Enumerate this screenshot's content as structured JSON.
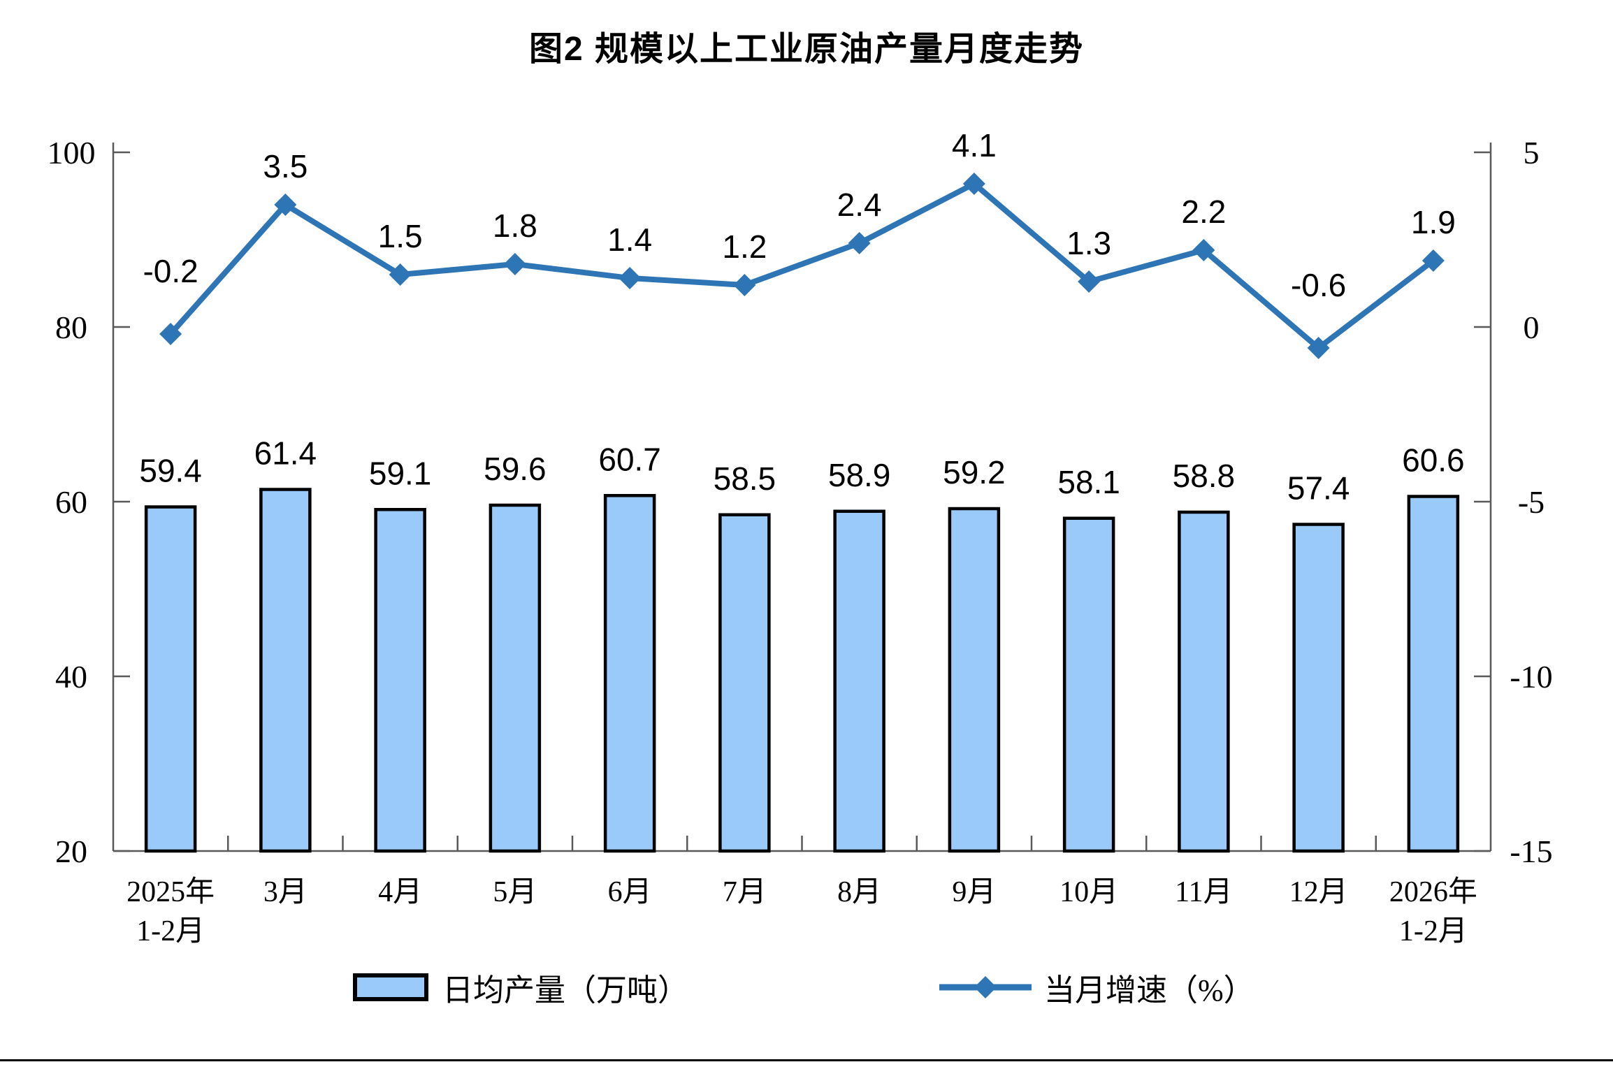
{
  "page": {
    "title": "图2 规模以上工业原油产量月度走势"
  },
  "legend": {
    "bar_label": "日均产量（万吨）",
    "line_label": "当月增速（%）"
  },
  "colors": {
    "bar_fill": "#9ACAFA",
    "bar_border": "#000000",
    "line": "#2E75B6",
    "axis": "#595959",
    "label_text": "#000000"
  },
  "chart_data": {
    "type": "combo",
    "title": "图2 规模以上工业原油产量月度走势",
    "categories": [
      "2025年\n1-2月",
      "3月",
      "4月",
      "5月",
      "6月",
      "7月",
      "8月",
      "9月",
      "10月",
      "11月",
      "12月",
      "2026年\n1-2月"
    ],
    "series": [
      {
        "name": "日均产量（万吨）",
        "type": "bar",
        "axis": "left",
        "values": [
          59.4,
          61.4,
          59.1,
          59.6,
          60.7,
          58.5,
          58.9,
          59.2,
          58.1,
          58.8,
          57.4,
          60.6
        ]
      },
      {
        "name": "当月增速（%）",
        "type": "line",
        "axis": "right",
        "values": [
          -0.2,
          3.5,
          1.5,
          1.8,
          1.4,
          1.2,
          2.4,
          4.1,
          1.3,
          2.2,
          -0.6,
          1.9
        ]
      }
    ],
    "left_axis": {
      "min": 20,
      "max": 100,
      "ticks": [
        20,
        40,
        60,
        80,
        100
      ]
    },
    "right_axis": {
      "min": -15,
      "max": 5,
      "ticks": [
        -15,
        -10,
        -5,
        0,
        5
      ]
    },
    "legend_position": "bottom",
    "grid": false,
    "data_labels": true
  }
}
